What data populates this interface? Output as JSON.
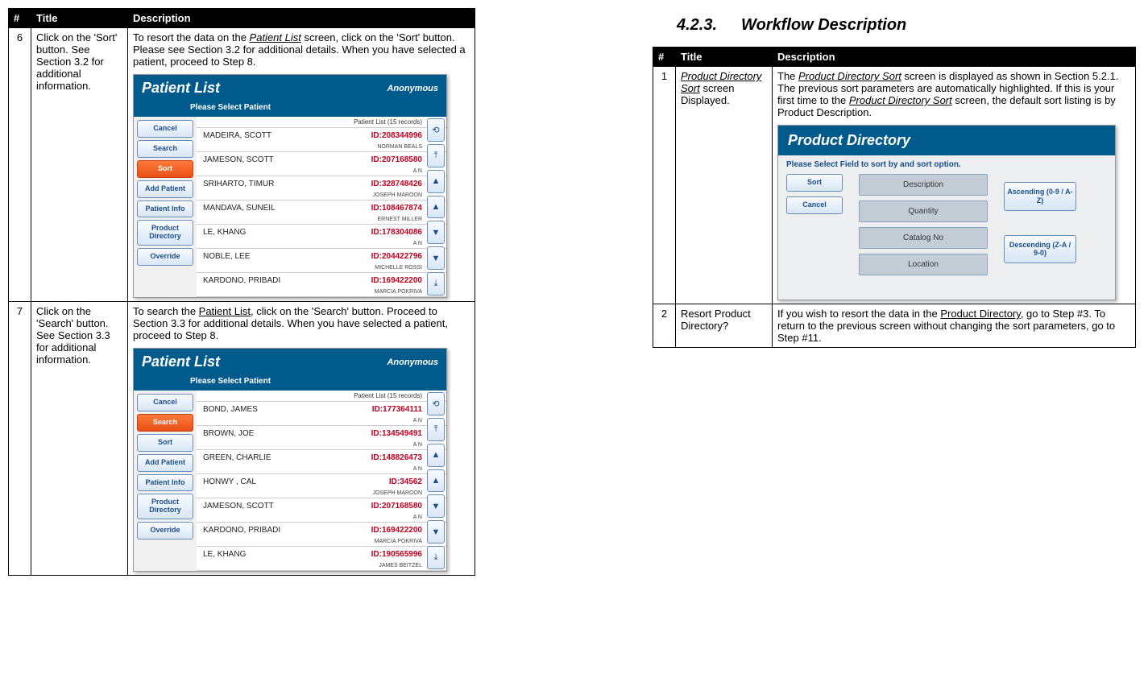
{
  "left_table": {
    "headers": {
      "num": "#",
      "title": "Title",
      "desc": "Description"
    },
    "rows": [
      {
        "num": "6",
        "title": "Click on the 'Sort' button.  See Section 3.2 for additional information.",
        "desc_pre": "To resort the data on the ",
        "desc_link": "Patient List",
        "desc_post": " screen, click on the 'Sort' button.  Please see Section 3.2 for additional details.   When you have selected a patient, proceed to Step 8."
      },
      {
        "num": "7",
        "title": "Click on the 'Search' button.  See Section 3.3 for additional information.",
        "desc_pre": "To search the ",
        "desc_link": "Patient List",
        "desc_post": ", click on the 'Search' button.  Proceed to Section 3.3 for additional details.  When you have selected a patient, proceed to Step 8."
      }
    ]
  },
  "section_heading": {
    "num": "4.2.3.",
    "text": "Workflow Description"
  },
  "right_table": {
    "headers": {
      "num": "#",
      "title": "Title",
      "desc": "Description"
    },
    "rows": [
      {
        "num": "1",
        "title_link": "Product Directory Sort",
        "title_post": " screen Displayed.",
        "desc_pre": "The ",
        "desc_link1": "Product Directory Sort",
        "desc_mid": " screen is displayed as shown in Section 5.2.1.  The previous sort parameters are automatically highlighted.  If this is your first time to the ",
        "desc_link2": "Product Directory Sort",
        "desc_post": " screen, the default sort listing is by Product Description."
      },
      {
        "num": "2",
        "title": "Resort Product Directory?",
        "desc_pre": "If you wish to resort the data in the ",
        "desc_link": "Product Directory",
        "desc_post": ", go to Step #3.  To return to the previous screen without changing the sort parameters, go to Step #11."
      }
    ]
  },
  "patient_list_mock": {
    "title": "Patient List",
    "anon": "Anonymous",
    "subtitle": "Please Select Patient",
    "list_top": "Patient List (15 records)",
    "side": [
      "Cancel",
      "Search",
      "Sort",
      "Add Patient",
      "Patient Info",
      "Product Directory",
      "Override"
    ],
    "rows_sort": [
      {
        "name": "MADEIRA, SCOTT",
        "id": "ID:208344996",
        "sub": "NORMAN BEALS"
      },
      {
        "name": "JAMESON, SCOTT",
        "id": "ID:207168580",
        "sub": "A N"
      },
      {
        "name": "SRIHARTO, TIMUR",
        "id": "ID:328748426",
        "sub": "JOSEPH MAROON"
      },
      {
        "name": "MANDAVA, SUNEIL",
        "id": "ID:108467874",
        "sub": "ERNEST MILLER"
      },
      {
        "name": "LE, KHANG",
        "id": "ID:178304086",
        "sub": "A N"
      },
      {
        "name": "NOBLE, LEE",
        "id": "ID:204422796",
        "sub": "MICHELLE ROSSI"
      },
      {
        "name": "KARDONO, PRIBADI",
        "id": "ID:169422200",
        "sub": "MARCIA POKRIVA"
      }
    ],
    "rows_search": [
      {
        "name": "BOND, JAMES",
        "id": "ID:177364111",
        "sub": "A N"
      },
      {
        "name": "BROWN, JOE",
        "id": "ID:134549491",
        "sub": "A N"
      },
      {
        "name": "GREEN, CHARLIE",
        "id": "ID:148826473",
        "sub": "A N"
      },
      {
        "name": "HONWY , CAL",
        "id": "ID:34562",
        "sub": "JOSEPH MAROON"
      },
      {
        "name": "JAMESON, SCOTT",
        "id": "ID:207168580",
        "sub": "A N"
      },
      {
        "name": "KARDONO, PRIBADI",
        "id": "ID:169422200",
        "sub": "MARCIA POKRIVA"
      },
      {
        "name": "LE, KHANG",
        "id": "ID:190565996",
        "sub": "JAMES BEITZEL"
      }
    ],
    "scroll_glyphs": [
      "⟲",
      "⤒",
      "▲",
      "▲",
      "▼",
      "▼",
      "⤓"
    ]
  },
  "pd_mock": {
    "title": "Product Directory",
    "subtitle": "Please Select Field to sort by and sort option.",
    "side": [
      "Sort",
      "Cancel"
    ],
    "fields": [
      "Description",
      "Quantity",
      "Catalog No",
      "Location"
    ],
    "asc": "Ascending (0-9 / A-Z)",
    "desc": "Descending (Z-A / 9-0)"
  }
}
